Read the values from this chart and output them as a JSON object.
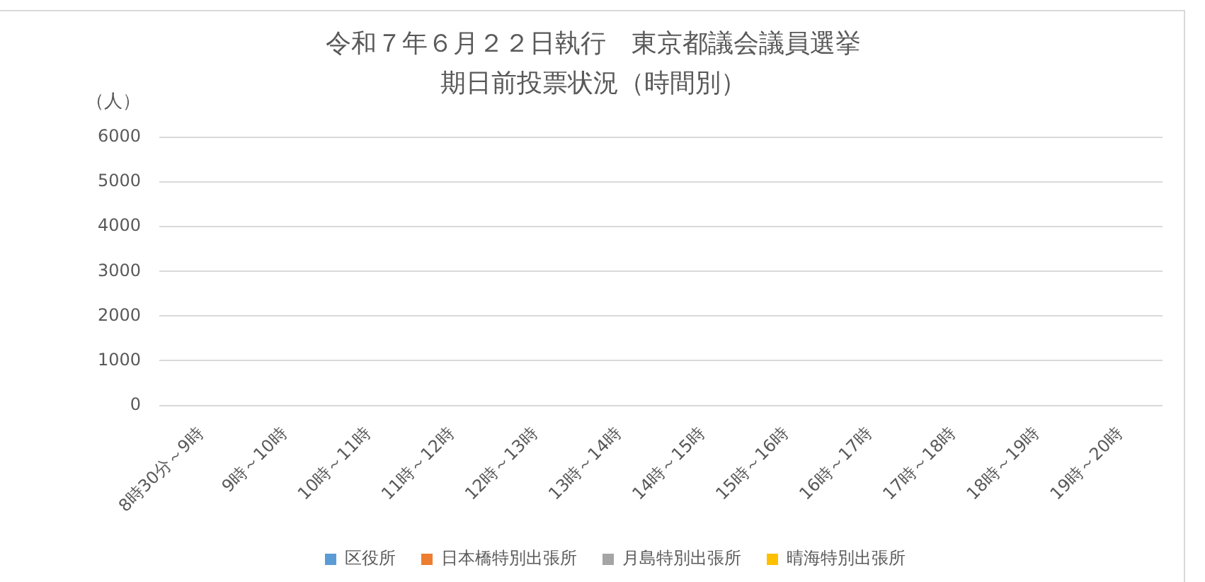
{
  "chart_data": {
    "type": "bar",
    "title": "令和７年６月２２日執行　東京都議会議員選挙",
    "subtitle": "期日前投票状況（時間別）",
    "ylabel": "（人）",
    "categories": [
      "8時30分～9時",
      "9時～10時",
      "10時～11時",
      "11時～12時",
      "12時～13時",
      "13時～14時",
      "14時～15時",
      "15時～16時",
      "16時～17時",
      "17時～18時",
      "18時～19時",
      "19時～20時"
    ],
    "series": [
      {
        "name": "区役所",
        "color": "#5b9bd5",
        "values": [
          null,
          null,
          null,
          null,
          null,
          null,
          null,
          null,
          null,
          null,
          null,
          null
        ]
      },
      {
        "name": "日本橋特別出張所",
        "color": "#ed7d31",
        "values": [
          null,
          null,
          null,
          null,
          null,
          null,
          null,
          null,
          null,
          null,
          null,
          null
        ]
      },
      {
        "name": "月島特別出張所",
        "color": "#a5a5a5",
        "values": [
          null,
          null,
          null,
          null,
          null,
          null,
          null,
          null,
          null,
          null,
          null,
          null
        ]
      },
      {
        "name": "晴海特別出張所",
        "color": "#ffc000",
        "values": [
          null,
          null,
          null,
          null,
          null,
          null,
          null,
          null,
          null,
          null,
          null,
          null
        ]
      }
    ],
    "ylim": [
      0,
      6000
    ],
    "yticks": [
      0,
      1000,
      2000,
      3000,
      4000,
      5000,
      6000
    ],
    "grid": "y",
    "legend": "bottom"
  }
}
